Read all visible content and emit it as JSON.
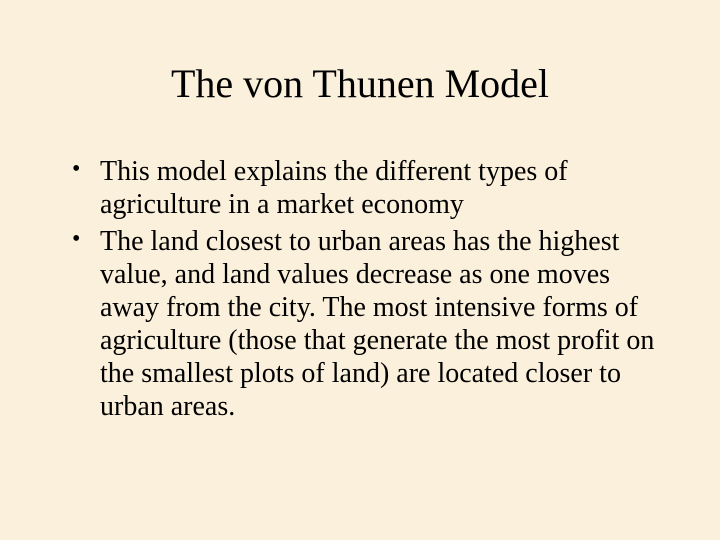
{
  "slide": {
    "background_color": "#fbf0db",
    "text_color": "#000000",
    "title": "The von Thunen Model",
    "title_fontsize": 40,
    "body_fontsize": 28,
    "font_family": "Times New Roman",
    "bullets": [
      "This model explains the different types of agriculture in a market economy",
      "The land closest to urban areas has the highest value, and land values decrease as one moves away from the city.  The most intensive forms of agriculture (those that generate the most profit on the smallest plots of land) are located closer to urban areas."
    ]
  }
}
